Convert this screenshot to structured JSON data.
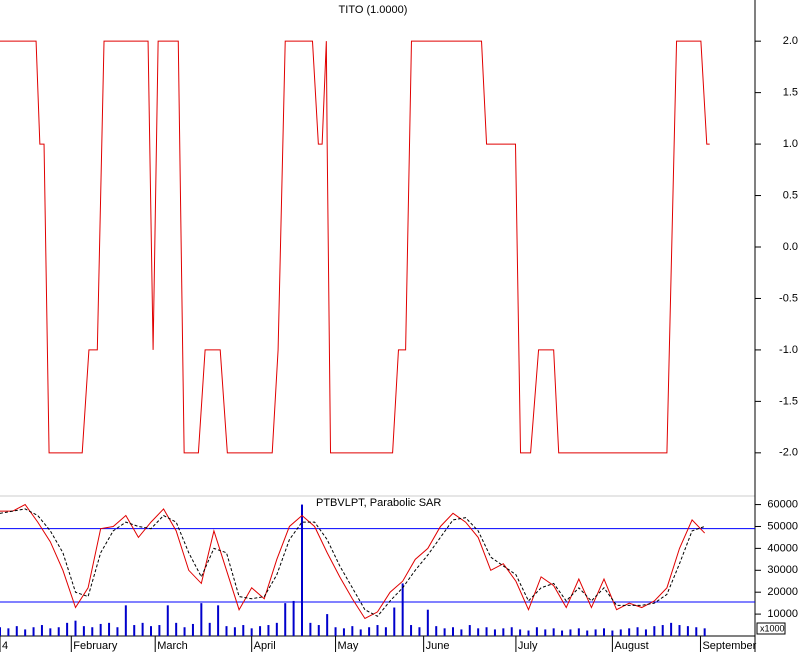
{
  "chart_data": [
    {
      "type": "line",
      "title": "TITO (1.0000)",
      "xlim": [
        0,
        180
      ],
      "ylim": [
        -2.4,
        2.4
      ],
      "yticks": [
        {
          "value": -2,
          "label": "-2.0"
        },
        -1.5,
        {
          "value": -1,
          "label": "-1.0"
        },
        -0.5,
        {
          "value": 0,
          "label": "0.0"
        },
        0.5,
        {
          "value": 1,
          "label": "1.0"
        },
        1.5,
        {
          "value": 2,
          "label": "2.0"
        }
      ],
      "series": [
        {
          "color": "#e00000",
          "x": [
            0,
            8.6,
            9.5,
            10.5,
            11.7,
            19.6,
            21.2,
            23.2,
            24.8,
            35.3,
            36.5,
            37.7,
            42.5,
            43.9,
            47.3,
            48.9,
            52.5,
            54.2,
            64.9,
            66.3,
            68,
            74.5,
            75.9,
            76.8,
            77.8,
            78,
            78.8,
            93.6,
            95,
            96.7,
            98.1,
            114.8,
            116,
            122.9,
            124.1,
            126.5,
            128.4,
            132,
            133.2,
            159,
            161.3,
            167.1,
            168.5,
            169.2
          ],
          "values": [
            2,
            2,
            1,
            1,
            -2,
            -2,
            -1,
            -1,
            2,
            2,
            -1,
            2,
            2,
            -2,
            -2,
            -1,
            -1,
            -2,
            -2,
            -1,
            2,
            2,
            1,
            1,
            2,
            1,
            -2,
            -2,
            -1,
            -1,
            2,
            2,
            1,
            1,
            -2,
            -2,
            -1,
            -1,
            -2,
            -2,
            2,
            2,
            1,
            1
          ]
        }
      ]
    },
    {
      "type": "line",
      "title": "PTBVLPT, Parabolic SAR",
      "unit_label": "x1000",
      "xlim": [
        0,
        180
      ],
      "ylim": [
        0,
        63000
      ],
      "xticks": [
        {
          "value": 0,
          "label": "4"
        },
        {
          "value": 17,
          "label": "February"
        },
        {
          "value": 37,
          "label": "March"
        },
        {
          "value": 60,
          "label": "April"
        },
        {
          "value": 80,
          "label": "May"
        },
        {
          "value": 101,
          "label": "June"
        },
        {
          "value": 123,
          "label": "July"
        },
        {
          "value": 146,
          "label": "August"
        },
        {
          "value": 167,
          "label": "September"
        }
      ],
      "yticks": [
        10000,
        20000,
        30000,
        40000,
        50000,
        60000
      ],
      "hlines": [
        {
          "value": 49000,
          "color": "#0000ff"
        },
        {
          "value": 15500,
          "color": "#0000ff"
        }
      ],
      "x": [
        0,
        3,
        6,
        9,
        12,
        15,
        18,
        21,
        24,
        27,
        30,
        33,
        36,
        39,
        42,
        45,
        48,
        51,
        54,
        57,
        60,
        63,
        66,
        69,
        72,
        75,
        78,
        81,
        84,
        87,
        90,
        93,
        96,
        99,
        102,
        105,
        108,
        111,
        114,
        117,
        120,
        123,
        126,
        129,
        132,
        135,
        138,
        141,
        144,
        147,
        150,
        153,
        156,
        159,
        162,
        165,
        168
      ],
      "series": [
        {
          "color": "#e00000",
          "dash": false,
          "values": [
            57000,
            57000,
            60000,
            52000,
            43000,
            30000,
            13000,
            22000,
            49000,
            50000,
            55000,
            45000,
            52000,
            58000,
            48000,
            30000,
            24000,
            48000,
            30000,
            12000,
            22000,
            17000,
            35000,
            50000,
            55000,
            50000,
            38000,
            27000,
            17000,
            8000,
            11000,
            20000,
            25000,
            35000,
            40000,
            50000,
            56000,
            52000,
            45000,
            30000,
            33000,
            25000,
            12000,
            27000,
            23000,
            13000,
            26000,
            13000,
            26000,
            12000,
            15000,
            13000,
            16000,
            22000,
            40000,
            53000,
            47000
          ]
        },
        {
          "color": "#000000",
          "dash": true,
          "values": [
            56000,
            57000,
            58000,
            55000,
            48000,
            38000,
            20000,
            18000,
            38000,
            48000,
            52000,
            50000,
            49000,
            55000,
            52000,
            38000,
            27000,
            40000,
            38000,
            18000,
            17000,
            18000,
            28000,
            44000,
            52000,
            52000,
            44000,
            32000,
            22000,
            12000,
            9000,
            16000,
            22000,
            30000,
            37000,
            45000,
            53000,
            54000,
            48000,
            36000,
            32000,
            28000,
            16000,
            22000,
            24000,
            16000,
            22000,
            16000,
            22000,
            14000,
            14000,
            14000,
            15000,
            19000,
            33000,
            48000,
            50000
          ]
        }
      ],
      "volume": {
        "color": "#0000cc",
        "x": [
          0,
          2,
          4,
          6,
          8,
          10,
          12,
          14,
          16,
          18,
          20,
          22,
          24,
          26,
          28,
          30,
          32,
          34,
          36,
          38,
          40,
          42,
          44,
          46,
          48,
          50,
          52,
          54,
          56,
          58,
          60,
          62,
          64,
          66,
          68,
          70,
          72,
          74,
          76,
          78,
          80,
          82,
          84,
          86,
          88,
          90,
          92,
          94,
          96,
          98,
          100,
          102,
          104,
          106,
          108,
          110,
          112,
          114,
          116,
          118,
          120,
          122,
          124,
          126,
          128,
          130,
          132,
          134,
          136,
          138,
          140,
          142,
          144,
          146,
          148,
          150,
          152,
          154,
          156,
          158,
          160,
          162,
          164,
          166,
          168
        ],
        "values": [
          4000,
          3500,
          4500,
          3000,
          4000,
          5000,
          3500,
          4000,
          6000,
          7000,
          4500,
          4000,
          5500,
          6000,
          4000,
          14000,
          5000,
          6000,
          4500,
          5000,
          14000,
          6000,
          4000,
          5500,
          15000,
          6000,
          14000,
          4500,
          4000,
          5000,
          3500,
          4500,
          5000,
          6000,
          15000,
          16000,
          60000,
          6000,
          5000,
          10000,
          4000,
          3500,
          4500,
          3000,
          4000,
          5000,
          4000,
          13000,
          24000,
          5000,
          4000,
          12000,
          4500,
          3500,
          4000,
          3000,
          5000,
          3500,
          4000,
          3000,
          3500,
          4000,
          3000,
          2500,
          4000,
          3000,
          3500,
          2500,
          3000,
          3500,
          2500,
          3000,
          3500,
          2500,
          3000,
          3500,
          4000,
          3000,
          4500,
          5000,
          6000,
          5000,
          4500,
          4000,
          3500
        ]
      }
    }
  ]
}
